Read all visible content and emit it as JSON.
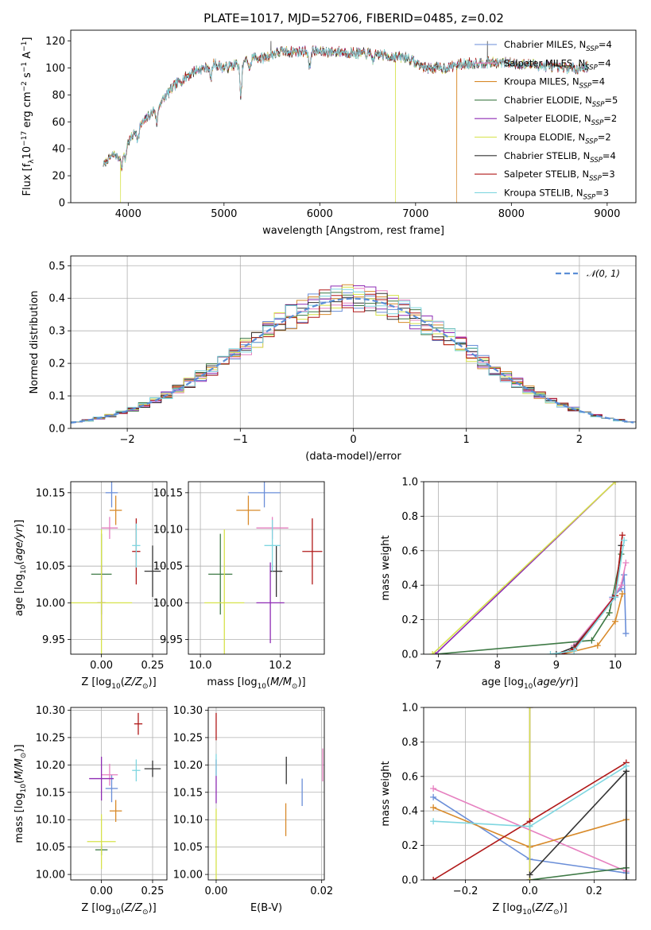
{
  "figure": {
    "title": "PLATE=1017, MJD=52706, FIBERID=0485, z=0.02",
    "colors": {
      "Chabrier MILES": "#6a8ed8",
      "Salpeter MILES": "#e680c0",
      "Kroupa MILES": "#d88a2a",
      "Chabrier ELODIE": "#3f7a46",
      "Salpeter ELODIE": "#8e2bb4",
      "Kroupa ELODIE": "#d6e24a",
      "Chabrier STELIB": "#333333",
      "Salpeter STELIB": "#b01818",
      "Kroupa STELIB": "#7fd6e0"
    },
    "legend_entries": [
      {
        "name": "Chabrier MILES",
        "base": "Chabrier MILES, N",
        "sub": "SSP",
        "eq": "=4"
      },
      {
        "name": "Salpeter MILES",
        "base": "Salpeter MILES, N",
        "sub": "SSP",
        "eq": "=4"
      },
      {
        "name": "Kroupa MILES",
        "base": "Kroupa MILES, N",
        "sub": "SSP",
        "eq": "=4"
      },
      {
        "name": "Chabrier ELODIE",
        "base": "Chabrier ELODIE, N",
        "sub": "SSP",
        "eq": "=5"
      },
      {
        "name": "Salpeter ELODIE",
        "base": "Salpeter ELODIE, N",
        "sub": "SSP",
        "eq": "=2"
      },
      {
        "name": "Kroupa ELODIE",
        "base": "Kroupa ELODIE, N",
        "sub": "SSP",
        "eq": "=2"
      },
      {
        "name": "Chabrier STELIB",
        "base": "Chabrier STELIB, N",
        "sub": "SSP",
        "eq": "=4"
      },
      {
        "name": "Salpeter STELIB",
        "base": "Salpeter STELIB, N",
        "sub": "SSP",
        "eq": "=3"
      },
      {
        "name": "Kroupa STELIB",
        "base": "Kroupa STELIB, N",
        "sub": "SSP",
        "eq": "=3"
      }
    ]
  },
  "chart_data": [
    {
      "id": "spectrum",
      "type": "line",
      "xlabel": "wavelength [Angstrom, rest frame]",
      "ylabel": "Flux [f_λ 10^-17 erg cm^-2 s^-1 A^-1]",
      "xlim": [
        3400,
        9300
      ],
      "ylim": [
        0,
        128
      ],
      "xticks": [
        4000,
        5000,
        6000,
        7000,
        8000,
        9000
      ],
      "yticks": [
        0,
        20,
        40,
        60,
        80,
        100,
        120
      ],
      "legend": "top-right",
      "grid": false,
      "continuum": {
        "wavelength": [
          3740,
          3800,
          3850,
          3900,
          3950,
          4000,
          4100,
          4200,
          4300,
          4400,
          4500,
          4600,
          4700,
          4800,
          4900,
          5000,
          5100,
          5200,
          5300,
          5400,
          5500,
          5600,
          5700,
          5800,
          5900,
          6000,
          6200,
          6400,
          6600,
          6800,
          6900,
          7000,
          7100,
          7200,
          7300,
          7500,
          7700,
          7900,
          8100,
          8300,
          8500,
          8700,
          8800
        ],
        "flux": [
          28,
          33,
          36,
          33,
          40,
          45,
          55,
          63,
          71,
          80,
          88,
          93,
          98,
          100,
          103,
          100,
          102,
          104,
          108,
          107,
          110,
          112,
          112,
          112,
          113,
          112,
          112,
          111,
          110,
          108,
          108,
          104,
          100,
          100,
          100,
          103,
          104,
          104,
          103,
          102,
          100,
          100,
          101
        ]
      },
      "absorption_features": [
        {
          "wavelength": 3934,
          "depth": 12
        },
        {
          "wavelength": 3969,
          "depth": 10
        },
        {
          "wavelength": 4102,
          "depth": 8
        },
        {
          "wavelength": 4300,
          "depth": 12
        },
        {
          "wavelength": 4861,
          "depth": 10
        },
        {
          "wavelength": 5175,
          "depth": 25
        },
        {
          "wavelength": 5270,
          "depth": 8
        },
        {
          "wavelength": 5893,
          "depth": 14
        },
        {
          "wavelength": 6563,
          "depth": 6
        }
      ],
      "artifacts": [
        {
          "series": "Kroupa ELODIE",
          "wavelength": 3920,
          "flux": 0
        },
        {
          "series": "Chabrier STELIB",
          "wavelength": 5490,
          "flux": 120
        },
        {
          "series": "Kroupa ELODIE",
          "wavelength": 6790,
          "flux": 0
        },
        {
          "series": "Kroupa MILES",
          "wavelength": 7430,
          "flux": 0
        },
        {
          "series": "Chabrier STELIB",
          "wavelength": 7750,
          "flux": 120
        }
      ]
    },
    {
      "id": "residuals",
      "type": "histogram",
      "xlabel": "(data-model)/error",
      "ylabel": "Normed distribution",
      "xlim": [
        -2.5,
        2.5
      ],
      "ylim": [
        0,
        0.53
      ],
      "xticks": [
        -2,
        -1,
        0,
        1,
        2
      ],
      "yticks": [
        0.0,
        0.1,
        0.2,
        0.3,
        0.4,
        0.5
      ],
      "grid": true,
      "bin_width": 0.1,
      "reference": {
        "name": "N(0,1)",
        "mu": 0,
        "sigma": 1,
        "style": "dashed"
      },
      "legend": "top-right"
    },
    {
      "id": "age_vs_Z",
      "type": "scatter",
      "xlabel": "Z [log10(Z/Z⊙)]",
      "ylabel": "age [log10(age/yr)]",
      "xlim": [
        -0.15,
        0.32
      ],
      "ylim": [
        9.93,
        10.165
      ],
      "xticks": [
        0.0,
        0.25
      ],
      "yticks": [
        9.95,
        10.0,
        10.05,
        10.1,
        10.15
      ],
      "grid": true,
      "points": [
        {
          "series": "Chabrier MILES",
          "x": 0.05,
          "y": 10.15,
          "xerr": 0.03,
          "yerr": 0.02
        },
        {
          "series": "Salpeter MILES",
          "x": 0.04,
          "y": 10.102,
          "xerr": 0.04,
          "yerr": 0.015
        },
        {
          "series": "Kroupa MILES",
          "x": 0.07,
          "y": 10.126,
          "xerr": 0.03,
          "yerr": 0.02
        },
        {
          "series": "Chabrier ELODIE",
          "x": 0.0,
          "y": 10.039,
          "xerr": 0.05,
          "yerr": 0.055
        },
        {
          "series": "Salpeter ELODIE",
          "x": 0.0,
          "y": 10.0,
          "xerr": 0.02,
          "yerr": 0.05
        },
        {
          "series": "Kroupa ELODIE",
          "x": 0.0,
          "y": 10.0,
          "xerr": 0.15,
          "yerr": 0.1
        },
        {
          "series": "Chabrier STELIB",
          "x": 0.25,
          "y": 10.043,
          "xerr": 0.04,
          "yerr": 0.035
        },
        {
          "series": "Salpeter STELIB",
          "x": 0.17,
          "y": 10.07,
          "xerr": 0.02,
          "yerr": 0.045
        },
        {
          "series": "Kroupa STELIB",
          "x": 0.17,
          "y": 10.078,
          "xerr": 0.02,
          "yerr": 0.03
        }
      ]
    },
    {
      "id": "age_vs_mass",
      "type": "scatter",
      "xlabel": "mass [log10(M/M⊙)]",
      "ylabel": "",
      "xlim": [
        9.97,
        10.31
      ],
      "ylim": [
        9.93,
        10.165
      ],
      "xticks": [
        10.0,
        10.2
      ],
      "yticks": [
        9.95,
        10.0,
        10.05,
        10.1,
        10.15
      ],
      "grid": true,
      "points": [
        {
          "series": "Chabrier MILES",
          "x": 10.16,
          "y": 10.15,
          "xerr": 0.04,
          "yerr": 0.02
        },
        {
          "series": "Salpeter MILES",
          "x": 10.18,
          "y": 10.102,
          "xerr": 0.04,
          "yerr": 0.015
        },
        {
          "series": "Kroupa MILES",
          "x": 10.12,
          "y": 10.126,
          "xerr": 0.03,
          "yerr": 0.02
        },
        {
          "series": "Chabrier ELODIE",
          "x": 10.05,
          "y": 10.039,
          "xerr": 0.03,
          "yerr": 0.055
        },
        {
          "series": "Salpeter ELODIE",
          "x": 10.175,
          "y": 10.0,
          "xerr": 0.035,
          "yerr": 0.055
        },
        {
          "series": "Kroupa ELODIE",
          "x": 10.06,
          "y": 10.0,
          "xerr": 0.05,
          "yerr": 0.1
        },
        {
          "series": "Chabrier STELIB",
          "x": 10.19,
          "y": 10.043,
          "xerr": 0.015,
          "yerr": 0.035
        },
        {
          "series": "Salpeter STELIB",
          "x": 10.28,
          "y": 10.07,
          "xerr": 0.025,
          "yerr": 0.045
        },
        {
          "series": "Kroupa STELIB",
          "x": 10.18,
          "y": 10.078,
          "xerr": 0.02,
          "yerr": 0.035
        }
      ]
    },
    {
      "id": "weight_vs_age",
      "type": "line",
      "xlabel": "age [log10(age/yr)]",
      "ylabel": "mass weight",
      "xlim": [
        6.75,
        10.35
      ],
      "ylim": [
        0,
        1.0
      ],
      "xticks": [
        7,
        8,
        9,
        10
      ],
      "yticks": [
        0.0,
        0.2,
        0.4,
        0.6,
        0.8,
        1.0
      ],
      "grid": true,
      "series": [
        {
          "name": "Chabrier MILES",
          "x": [
            9.95,
            10.1,
            10.15,
            10.18
          ],
          "y": [
            0.33,
            0.38,
            0.46,
            0.12
          ]
        },
        {
          "name": "Salpeter MILES",
          "x": [
            9.3,
            9.95,
            10.1,
            10.18
          ],
          "y": [
            0.05,
            0.32,
            0.4,
            0.53
          ]
        },
        {
          "name": "Kroupa MILES",
          "x": [
            9.1,
            9.7,
            10.0,
            10.12
          ],
          "y": [
            0.0,
            0.05,
            0.19,
            0.35
          ]
        },
        {
          "name": "Chabrier ELODIE",
          "x": [
            6.95,
            9.6,
            9.9,
            10.1
          ],
          "y": [
            0.0,
            0.08,
            0.24,
            0.58
          ]
        },
        {
          "name": "Salpeter ELODIE",
          "x": [
            6.95,
            10.0
          ],
          "y": [
            0.0,
            1.0
          ]
        },
        {
          "name": "Kroupa ELODIE",
          "x": [
            6.9,
            10.0
          ],
          "y": [
            0.0,
            1.0
          ]
        },
        {
          "name": "Chabrier STELIB",
          "x": [
            9.0,
            9.3,
            10.0,
            10.1
          ],
          "y": [
            0.0,
            0.04,
            0.33,
            0.63
          ]
        },
        {
          "name": "Salpeter STELIB",
          "x": [
            9.1,
            9.3,
            10.0,
            10.12
          ],
          "y": [
            0.0,
            0.03,
            0.34,
            0.69
          ]
        },
        {
          "name": "Kroupa STELIB",
          "x": [
            8.9,
            9.3,
            10.0,
            10.15
          ],
          "y": [
            0.0,
            0.02,
            0.33,
            0.66
          ]
        }
      ]
    },
    {
      "id": "mass_vs_Z",
      "type": "scatter",
      "xlabel": "Z [log10(Z/Z⊙)]",
      "ylabel": "mass [log10(M/M⊙)]",
      "xlim": [
        -0.15,
        0.32
      ],
      "ylim": [
        9.99,
        10.305
      ],
      "xticks": [
        0.0,
        0.25
      ],
      "yticks": [
        10.0,
        10.05,
        10.1,
        10.15,
        10.2,
        10.25,
        10.3
      ],
      "grid": true,
      "points": [
        {
          "series": "Chabrier MILES",
          "x": 0.05,
          "y": 10.157,
          "xerr": 0.03,
          "yerr": 0.025
        },
        {
          "series": "Salpeter MILES",
          "x": 0.04,
          "y": 10.182,
          "xerr": 0.04,
          "yerr": 0.02
        },
        {
          "series": "Kroupa MILES",
          "x": 0.07,
          "y": 10.116,
          "xerr": 0.03,
          "yerr": 0.02
        },
        {
          "series": "Chabrier ELODIE",
          "x": 0.0,
          "y": 10.045,
          "xerr": 0.03,
          "yerr": 0.01
        },
        {
          "series": "Salpeter ELODIE",
          "x": 0.0,
          "y": 10.175,
          "xerr": 0.06,
          "yerr": 0.04
        },
        {
          "series": "Kroupa ELODIE",
          "x": 0.0,
          "y": 10.06,
          "xerr": 0.07,
          "yerr": 0.05
        },
        {
          "series": "Chabrier STELIB",
          "x": 0.25,
          "y": 10.193,
          "xerr": 0.04,
          "yerr": 0.015
        },
        {
          "series": "Salpeter STELIB",
          "x": 0.18,
          "y": 10.275,
          "xerr": 0.02,
          "yerr": 0.02
        },
        {
          "series": "Kroupa STELIB",
          "x": 0.17,
          "y": 10.19,
          "xerr": 0.02,
          "yerr": 0.02
        }
      ]
    },
    {
      "id": "mass_vs_EBV",
      "type": "scatter",
      "xlabel": "E(B-V)",
      "ylabel": "",
      "xlim": [
        -0.0015,
        0.0205
      ],
      "ylim": [
        9.99,
        10.305
      ],
      "xticks": [
        0.0,
        0.02
      ],
      "yticks": [
        10.0,
        10.05,
        10.1,
        10.15,
        10.2,
        10.25,
        10.3
      ],
      "grid": true,
      "points": [
        {
          "series": "Chabrier MILES",
          "x": 0.0163,
          "y": 10.15,
          "xerr": 0,
          "yerr": 0.025
        },
        {
          "series": "Salpeter MILES",
          "x": 0.0202,
          "y": 10.2,
          "xerr": 0,
          "yerr": 0.03
        },
        {
          "series": "Kroupa MILES",
          "x": 0.0132,
          "y": 10.1,
          "xerr": 0,
          "yerr": 0.03
        },
        {
          "series": "Salpeter ELODIE",
          "x": 0.0,
          "y": 10.17,
          "xerr": 0,
          "yerr": 0.04
        },
        {
          "series": "Kroupa ELODIE",
          "x": 0.0,
          "y": 10.04,
          "xerr": 0,
          "yerr": 0.08
        },
        {
          "series": "Chabrier STELIB",
          "x": 0.0133,
          "y": 10.19,
          "xerr": 0,
          "yerr": 0.025
        },
        {
          "series": "Salpeter STELIB",
          "x": 0.0,
          "y": 10.27,
          "xerr": 0,
          "yerr": 0.025
        },
        {
          "series": "Kroupa STELIB",
          "x": 0.0,
          "y": 10.2,
          "xerr": 0,
          "yerr": 0.02
        }
      ]
    },
    {
      "id": "weight_vs_Z",
      "type": "line",
      "xlabel": "Z [log10(Z/Z⊙)]",
      "ylabel": "mass weight",
      "xlim": [
        -0.33,
        0.33
      ],
      "ylim": [
        0,
        1.0
      ],
      "xticks": [
        -0.2,
        0.0,
        0.2
      ],
      "yticks": [
        0.0,
        0.2,
        0.4,
        0.6,
        0.8,
        1.0
      ],
      "grid": true,
      "series": [
        {
          "name": "Chabrier MILES",
          "x": [
            -0.3,
            0.0,
            0.3
          ],
          "y": [
            0.48,
            0.12,
            0.04
          ]
        },
        {
          "name": "Salpeter MILES",
          "x": [
            -0.3,
            0.3
          ],
          "y": [
            0.53,
            0.05
          ]
        },
        {
          "name": "Kroupa MILES",
          "x": [
            -0.3,
            0.0,
            0.3
          ],
          "y": [
            0.42,
            0.19,
            0.35
          ]
        },
        {
          "name": "Chabrier ELODIE",
          "x": [
            0.0,
            0.3
          ],
          "y": [
            0.0,
            0.07
          ]
        },
        {
          "name": "Salpeter ELODIE",
          "x": [
            0.0,
            0.0
          ],
          "y": [
            0.0,
            1.0
          ]
        },
        {
          "name": "Kroupa ELODIE",
          "x": [
            0.0,
            0.0
          ],
          "y": [
            0.0,
            1.0
          ]
        },
        {
          "name": "Chabrier STELIB",
          "x": [
            0.0,
            0.3,
            0.3
          ],
          "y": [
            0.03,
            0.63,
            0.0
          ]
        },
        {
          "name": "Salpeter STELIB",
          "x": [
            -0.3,
            0.0,
            0.3
          ],
          "y": [
            0.0,
            0.34,
            0.68
          ]
        },
        {
          "name": "Kroupa STELIB",
          "x": [
            -0.3,
            0.0,
            0.3
          ],
          "y": [
            0.34,
            0.31,
            0.66
          ]
        }
      ]
    }
  ]
}
